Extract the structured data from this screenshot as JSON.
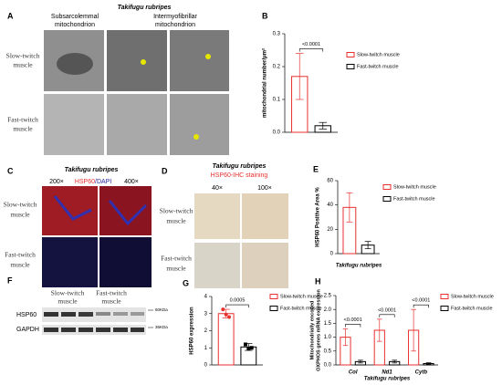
{
  "panel_a": {
    "label": "A",
    "title": "Takifugu rubripes",
    "columns": [
      [
        "Subsarcolemmal",
        "mitochondrion"
      ],
      [
        "Intermyofibrillar",
        "mitochondrion"
      ]
    ],
    "rows": [
      [
        "Slow-twitch",
        "muscle"
      ],
      [
        "Fast-twitch",
        "muscle"
      ]
    ]
  },
  "panel_c": {
    "label": "C",
    "title": "Takifugu rubripes",
    "magnifications": [
      "200×",
      "400×"
    ],
    "stain": [
      "HSP60",
      "/DAPI"
    ],
    "rows": [
      [
        "Slow-twitch",
        "muscle"
      ],
      [
        "Fast-twitch",
        "muscle"
      ]
    ]
  },
  "panel_d": {
    "label": "D",
    "title": "Takifugu rubripes",
    "subtitle": "HSP60-IHC staining",
    "magnifications": [
      "40×",
      "100×"
    ],
    "rows": [
      [
        "Slow-twitch",
        "muscle"
      ],
      [
        "Fast-twitch",
        "muscle"
      ]
    ]
  },
  "panel_f": {
    "label": "F",
    "lanes": [
      [
        "Slow-twitch",
        "muscle"
      ],
      [
        "Fast-twitch",
        "muscle"
      ]
    ],
    "bands": [
      "HSP60",
      "GAPDH"
    ],
    "sizes": [
      "60KDa",
      "36KDa"
    ]
  },
  "chart_data": [
    {
      "type": "bar",
      "label": "B",
      "y_label": "mitochondrial number/μm²",
      "ylim": [
        0,
        0.3
      ],
      "yticks": [
        {
          "value": 0,
          "label": "0.0"
        },
        0.1,
        0.2,
        0.3
      ],
      "categories": [
        null
      ],
      "series": [
        {
          "name": "Slow-twitch muscle",
          "color": "#e8312f",
          "values": [
            0.17
          ],
          "errors": [
            0.07
          ]
        },
        {
          "name": "Fast-twitch muscle",
          "color": "#000000",
          "values": [
            0.02
          ],
          "errors": [
            0.01
          ]
        }
      ],
      "annotations": [
        "<0.0001"
      ]
    },
    {
      "type": "bar",
      "label": "E",
      "y_label": "HSP60 Positive Area %",
      "x_label": "Takifugu rubripes",
      "ylim": [
        0,
        60
      ],
      "yticks": [
        0,
        20,
        40,
        60
      ],
      "categories": [
        null
      ],
      "series": [
        {
          "name": "Slow-twitch muscle",
          "color": "#e8312f",
          "values": [
            38
          ],
          "errors": [
            12
          ]
        },
        {
          "name": "Fast-twitch muscle",
          "color": "#000000",
          "values": [
            7
          ],
          "errors": [
            3
          ]
        }
      ]
    },
    {
      "type": "bar",
      "label": "G",
      "y_label": "HSP60 expression",
      "ylim": [
        0,
        4
      ],
      "yticks": [
        0,
        1,
        2,
        3,
        4
      ],
      "categories": [
        null
      ],
      "series": [
        {
          "name": "Slow-twitch muscle",
          "color": "#e8312f",
          "marker": "circle",
          "values": [
            3.0
          ],
          "errors": [
            0.25
          ],
          "points": [
            3.25,
            2.95,
            2.8
          ]
        },
        {
          "name": "Fast-twitch muscle",
          "color": "#000000",
          "marker": "square",
          "values": [
            1.05
          ],
          "errors": [
            0.2
          ],
          "points": [
            1.2,
            0.95,
            1.0
          ]
        }
      ],
      "annotations": [
        "0.0005"
      ]
    },
    {
      "type": "bar",
      "label": "H",
      "y_label": [
        "Mitochondrially encoded",
        "OXPHOS genes mRNA expression"
      ],
      "x_label": "Takifugu rubripes",
      "ylim": [
        0,
        2.5
      ],
      "yticks": [
        {
          "value": 0,
          "label": "0.0"
        },
        0.5,
        {
          "value": 1,
          "label": "1.0"
        },
        1.5,
        {
          "value": 2,
          "label": "2.0"
        },
        2.5
      ],
      "categories": [
        "CoI",
        "Nd1",
        "Cytb"
      ],
      "series": [
        {
          "name": "Slow-twitch muscle",
          "color": "#e8312f",
          "values": [
            1.0,
            1.25,
            1.25
          ],
          "errors": [
            0.3,
            0.4,
            0.75
          ]
        },
        {
          "name": "Fast-twitch muscle",
          "color": "#000000",
          "values": [
            0.12,
            0.12,
            0.05
          ],
          "errors": [
            0.05,
            0.05,
            0.03
          ]
        }
      ],
      "annotations": [
        "<0.0001",
        "<0.0001",
        "<0.0001"
      ]
    }
  ]
}
